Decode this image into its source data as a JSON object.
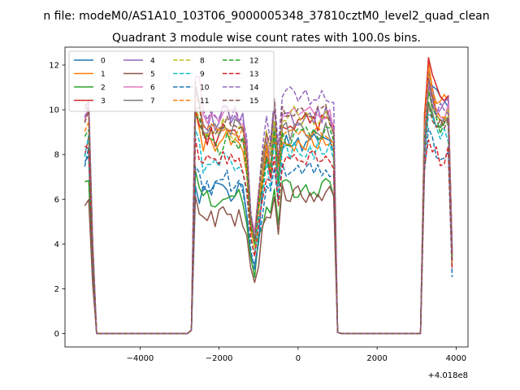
{
  "chart_data": {
    "type": "line",
    "title_line1": "n file: modeM0/AS1A10_103T06_9000005348_37810cztM0_level2_quad_clean",
    "title_line2": "Quadrant 3 module wise count rates with 100.0s bins.",
    "xlabel": "",
    "ylabel": "",
    "x_offset_label": "+4.018e8",
    "xlim": [
      -5900,
      4300
    ],
    "ylim": [
      -0.6,
      12.8
    ],
    "xticks": [
      -4000,
      -2000,
      0,
      2000,
      4000
    ],
    "xtick_labels": [
      "−4000",
      "−2000",
      "0",
      "2000",
      "4000"
    ],
    "yticks": [
      0,
      2,
      4,
      6,
      8,
      10,
      12
    ],
    "ytick_labels": [
      "0",
      "2",
      "4",
      "6",
      "8",
      "10",
      "12"
    ],
    "grid": false,
    "legend_position": "top-left",
    "legend_columns": 4,
    "series": [
      {
        "name": "0",
        "color": "#1f77b4",
        "dash": false,
        "base": [
          7.4,
          6.3,
          6.3,
          8.8,
          8.6,
          12.0
        ]
      },
      {
        "name": "1",
        "color": "#ff7f0e",
        "dash": false,
        "base": [
          9.2,
          10.1,
          8.6,
          8.8,
          8.6,
          11.8
        ]
      },
      {
        "name": "2",
        "color": "#2ca02c",
        "dash": false,
        "base": [
          6.5,
          7.0,
          6.1,
          6.0,
          6.5,
          10.5
        ]
      },
      {
        "name": "3",
        "color": "#d62728",
        "dash": false,
        "base": [
          8.4,
          10.2,
          8.8,
          8.6,
          9.5,
          12.1
        ]
      },
      {
        "name": "4",
        "color": "#9467bd",
        "dash": false,
        "base": [
          10.3,
          10.6,
          9.5,
          9.4,
          9.7,
          11.5
        ]
      },
      {
        "name": "5",
        "color": "#8c564b",
        "dash": false,
        "base": [
          5.8,
          6.0,
          5.2,
          5.8,
          6.2,
          11.0
        ]
      },
      {
        "name": "6",
        "color": "#e377c2",
        "dash": false,
        "base": [
          9.4,
          11.8,
          9.6,
          9.0,
          9.8,
          11.2
        ]
      },
      {
        "name": "7",
        "color": "#7f7f7f",
        "dash": false,
        "base": [
          10.0,
          10.9,
          9.2,
          8.8,
          9.0,
          10.8
        ]
      },
      {
        "name": "8",
        "color": "#bcbd22",
        "dash": true,
        "base": [
          9.8,
          10.4,
          8.9,
          9.2,
          9.8,
          11.0
        ]
      },
      {
        "name": "9",
        "color": "#17becf",
        "dash": true,
        "base": [
          8.2,
          9.0,
          7.6,
          8.0,
          8.2,
          10.2
        ]
      },
      {
        "name": "10",
        "color": "#1f77b4",
        "dash": true,
        "base": [
          7.6,
          7.8,
          6.6,
          7.0,
          7.2,
          9.2
        ]
      },
      {
        "name": "11",
        "color": "#ff7f0e",
        "dash": true,
        "base": [
          9.0,
          10.4,
          9.0,
          8.8,
          9.0,
          11.4
        ]
      },
      {
        "name": "12",
        "color": "#2ca02c",
        "dash": true,
        "base": [
          8.6,
          10.0,
          8.4,
          8.4,
          8.8,
          10.6
        ]
      },
      {
        "name": "13",
        "color": "#d62728",
        "dash": true,
        "base": [
          8.0,
          8.6,
          7.6,
          7.6,
          7.8,
          9.0
        ]
      },
      {
        "name": "14",
        "color": "#9467bd",
        "dash": true,
        "base": [
          10.0,
          10.4,
          9.8,
          10.4,
          10.6,
          11.2
        ]
      },
      {
        "name": "15",
        "color": "#8c564b",
        "dash": true,
        "base": [
          9.6,
          10.8,
          9.0,
          9.8,
          9.8,
          10.4
        ]
      }
    ]
  }
}
